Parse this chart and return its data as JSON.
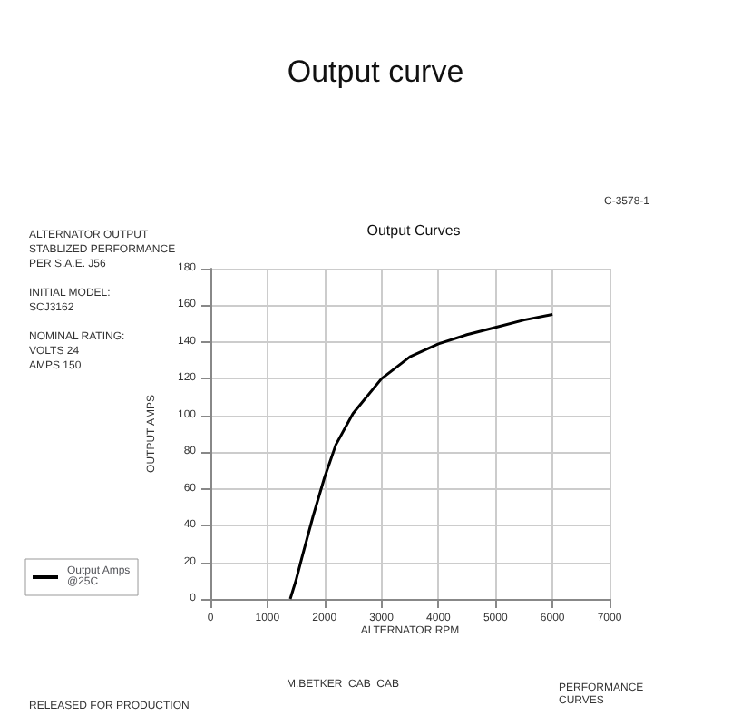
{
  "chart_data": {
    "type": "line",
    "title": "Output curve",
    "subtitle": "Output Curves",
    "xlabel": "ALTERNATOR RPM",
    "ylabel": "OUTPUT AMPS",
    "x": [
      1400,
      1500,
      1600,
      1800,
      2000,
      2200,
      2500,
      3000,
      3500,
      4000,
      4500,
      5000,
      5500,
      6000
    ],
    "series": [
      {
        "name": "Output Amps @25C",
        "color": "#000000",
        "values": [
          0,
          10,
          22,
          45,
          66,
          84,
          101,
          120,
          132,
          139,
          144,
          148,
          152,
          155
        ]
      }
    ],
    "xlim": [
      0,
      7000
    ],
    "xticks": [
      0,
      1000,
      2000,
      3000,
      4000,
      5000,
      6000,
      7000
    ],
    "ylim": [
      0,
      180
    ],
    "yticks": [
      0,
      20,
      40,
      60,
      80,
      100,
      120,
      140,
      160,
      180
    ],
    "grid": true,
    "legend": "left",
    "marker": "none",
    "line_style": "solid",
    "annotations": [
      "ALTERNATOR OUTPUT\nSTABLIZED PERFORMANCE\nPER S.A.E. J56",
      "INITIAL MODEL:\nSCJ3162",
      "NOMINAL RATING:\nVOLTS 24\nAMPS 150",
      "C-3578-1",
      "RELEASED FOR PRODUCTION",
      "M.BETKER  CAB  CAB",
      "PERFORMANCE\nCURVES"
    ]
  }
}
